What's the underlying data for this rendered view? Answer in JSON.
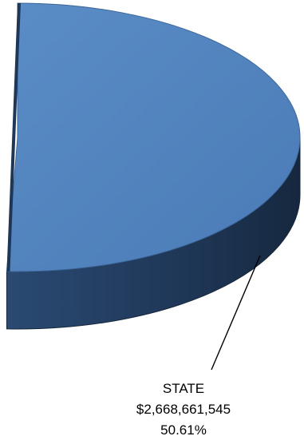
{
  "chart_data": {
    "type": "pie",
    "style": "3d",
    "slices": [
      {
        "label": "STATE",
        "value_text": "$2,668,661,545",
        "value": 2668661545,
        "percent_text": "50.61%",
        "percent": 50.61
      }
    ],
    "colors": {
      "slice_top": "#4F81BD",
      "slice_side": "#1F3757",
      "edge": "#2C4D75"
    }
  }
}
